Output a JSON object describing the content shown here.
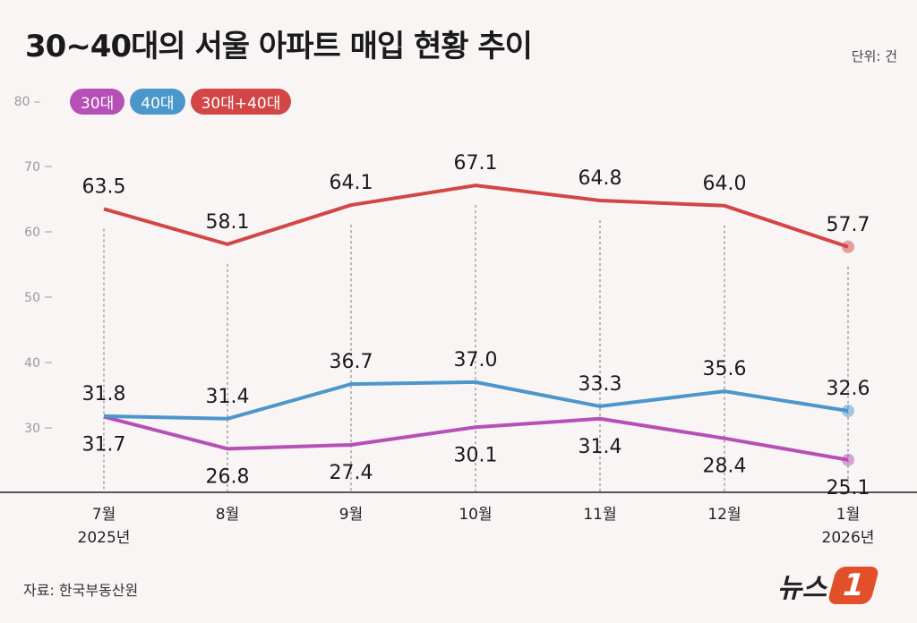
{
  "title": "30~40대의 서울 아파트 매입 현황 추이",
  "unit": "단위: 건",
  "source": "자료: 한국부동산원",
  "logo": "뉴스1",
  "chart_data": {
    "type": "line",
    "title": "30~40대의 서울 아파트 매입 현황 추이",
    "categories": [
      "7월\n2025년",
      "8월",
      "9월",
      "10월",
      "11월",
      "12월",
      "1월\n2026년"
    ],
    "x_labels": [
      [
        "7월",
        "2025년"
      ],
      [
        "8월"
      ],
      [
        "9월"
      ],
      [
        "10월"
      ],
      [
        "11월"
      ],
      [
        "12월"
      ],
      [
        "1월",
        "2026년"
      ]
    ],
    "yticks": [
      30,
      40,
      50,
      60,
      70,
      80
    ],
    "ylim": [
      20,
      80
    ],
    "grid": false,
    "legend": "top-left",
    "series": [
      {
        "name": "30대",
        "color": "#b64fb6",
        "values": [
          31.7,
          26.8,
          27.4,
          30.1,
          31.4,
          28.4,
          25.1
        ],
        "label_pos": "below"
      },
      {
        "name": "40대",
        "color": "#4b97cb",
        "values": [
          31.8,
          31.4,
          36.7,
          37.0,
          33.3,
          35.6,
          32.6
        ],
        "label_pos": "above"
      },
      {
        "name": "30대+40대",
        "color": "#d24646",
        "values": [
          63.5,
          58.1,
          64.1,
          67.1,
          64.8,
          64.0,
          57.7
        ],
        "label_pos": "above"
      }
    ]
  }
}
